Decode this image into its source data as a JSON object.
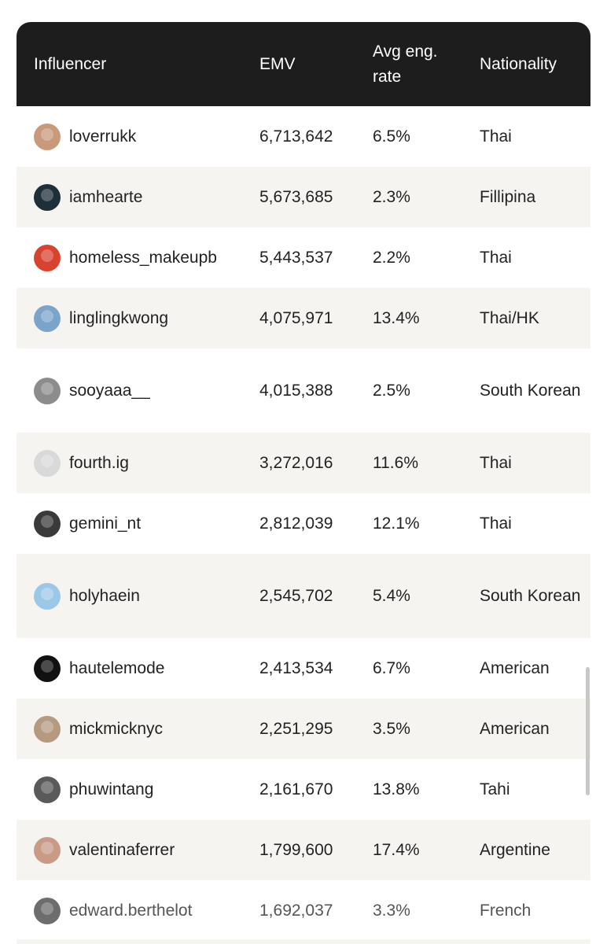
{
  "columns": {
    "influencer": "Influencer",
    "emv": "EMV",
    "eng": "Avg eng. rate",
    "nationality": "Nationality"
  },
  "rows": [
    {
      "name": "loverrukk",
      "emv": "6,713,642",
      "eng": "6.5%",
      "nat": "Thai",
      "avatar": "#c89a7a"
    },
    {
      "name": "iamhearte",
      "emv": "5,673,685",
      "eng": "2.3%",
      "nat": "Fillipina",
      "avatar": "#1f2f3a"
    },
    {
      "name": "homeless_makeupb",
      "emv": "5,443,537",
      "eng": "2.2%",
      "nat": "Thai",
      "avatar": "#d8432f"
    },
    {
      "name": "linglingkwong",
      "emv": "4,075,971",
      "eng": "13.4%",
      "nat": "Thai/HK",
      "avatar": "#7aa4c9"
    },
    {
      "name": "sooyaaa__",
      "emv": "4,015,388",
      "eng": "2.5%",
      "nat": "South Korean",
      "avatar": "#8c8c8c"
    },
    {
      "name": "fourth.ig",
      "emv": "3,272,016",
      "eng": "11.6%",
      "nat": "Thai",
      "avatar": "#d9d9d9"
    },
    {
      "name": "gemini_nt",
      "emv": "2,812,039",
      "eng": "12.1%",
      "nat": "Thai",
      "avatar": "#3a3a3a"
    },
    {
      "name": "holyhaein",
      "emv": "2,545,702",
      "eng": "5.4%",
      "nat": "South Korean",
      "avatar": "#9cc8e8"
    },
    {
      "name": "hautelemode",
      "emv": "2,413,534",
      "eng": "6.7%",
      "nat": "American",
      "avatar": "#111111"
    },
    {
      "name": "mickmicknyc",
      "emv": "2,251,295",
      "eng": "3.5%",
      "nat": "American",
      "avatar": "#b59a80"
    },
    {
      "name": "phuwintang",
      "emv": "2,161,670",
      "eng": "13.8%",
      "nat": "Tahi",
      "avatar": "#5a5a5a"
    },
    {
      "name": "valentinaferrer",
      "emv": "1,799,600",
      "eng": "17.4%",
      "nat": "Argentine",
      "avatar": "#c99a86"
    },
    {
      "name": "edward.berthelot",
      "emv": "1,692,037",
      "eng": "3.3%",
      "nat": "French",
      "avatar": "#6d6d6d"
    }
  ]
}
